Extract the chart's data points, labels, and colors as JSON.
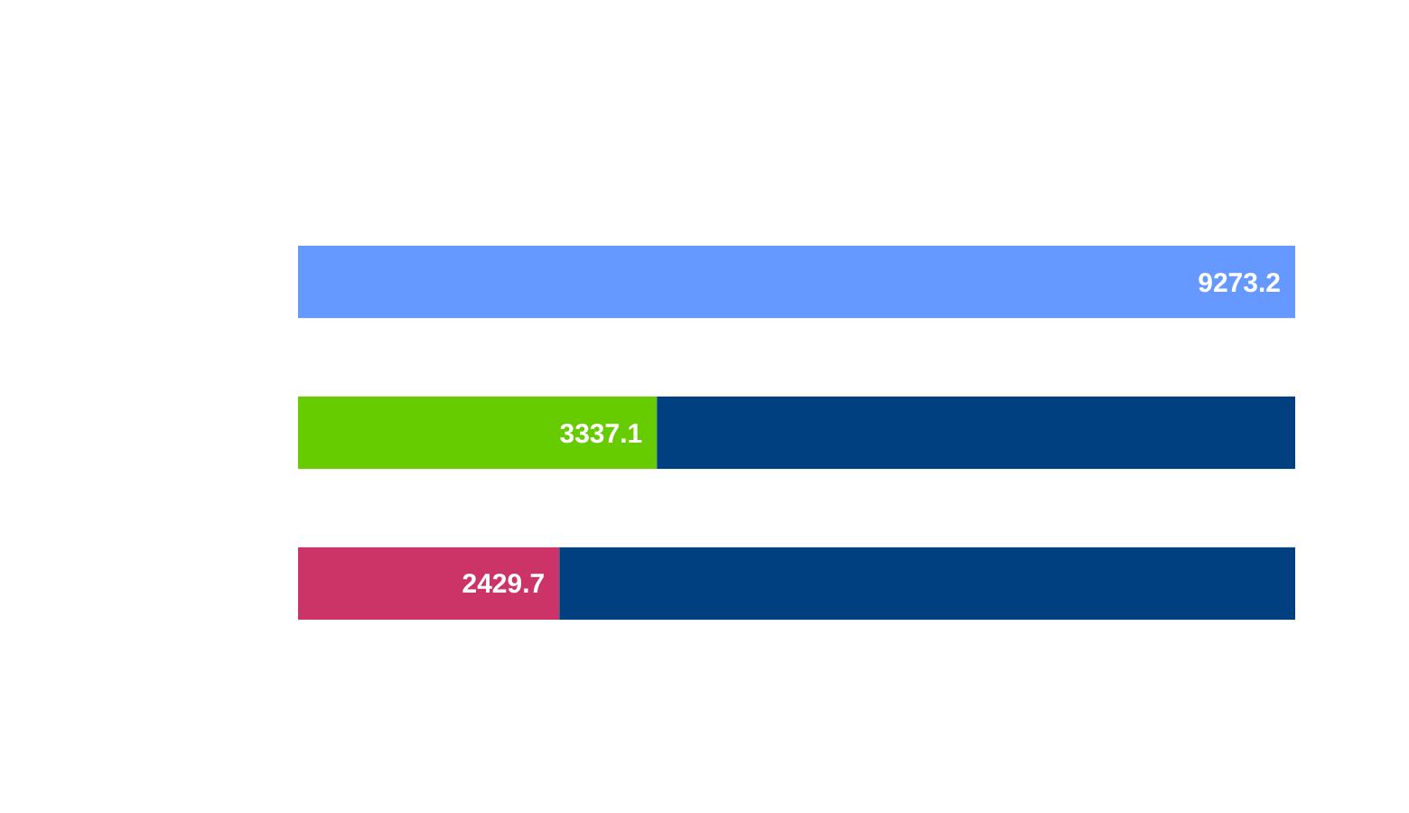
{
  "chart_data": {
    "type": "bar",
    "orientation": "horizontal",
    "stacked": true,
    "categories": [
      null,
      null,
      null
    ],
    "series": [
      {
        "colors": [
          "#6699ff",
          "#66cc00",
          "#cc3366"
        ],
        "values": [
          9273.2,
          3337.1,
          2429.7
        ],
        "value_labels": [
          "9273.2",
          "3337.1",
          "2429.7"
        ]
      },
      {
        "color": "#003f80",
        "values": [
          null,
          5936.1,
          6843.5
        ]
      }
    ]
  }
}
